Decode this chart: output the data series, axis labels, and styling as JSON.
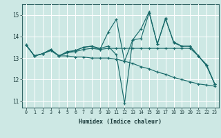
{
  "xlabel": "Humidex (Indice chaleur)",
  "bg_color": "#cde8e4",
  "line_color": "#1a6b6b",
  "grid_color": "#ffffff",
  "xlim": [
    -0.5,
    23.5
  ],
  "ylim": [
    10.7,
    15.5
  ],
  "yticks": [
    11,
    12,
    13,
    14,
    15
  ],
  "xticks": [
    0,
    1,
    2,
    3,
    4,
    5,
    6,
    7,
    8,
    9,
    10,
    11,
    12,
    13,
    14,
    15,
    16,
    17,
    18,
    19,
    20,
    21,
    22,
    23
  ],
  "series": [
    {
      "comment": "volatile line - peaks at 11(14.8), 15(15.1), 17(14.8)",
      "x": [
        0,
        1,
        2,
        3,
        4,
        5,
        6,
        7,
        8,
        9,
        10,
        11,
        12,
        13,
        14,
        15,
        16,
        17,
        18,
        19,
        20,
        21,
        22,
        23
      ],
      "y": [
        13.6,
        13.1,
        13.2,
        13.4,
        13.1,
        13.25,
        13.35,
        13.5,
        13.55,
        13.4,
        14.2,
        14.8,
        12.85,
        13.85,
        13.9,
        15.1,
        13.65,
        14.8,
        13.75,
        13.55,
        13.55,
        13.1,
        12.65,
        11.8
      ]
    },
    {
      "x": [
        0,
        1,
        2,
        3,
        4,
        5,
        6,
        7,
        8,
        9,
        10,
        11,
        12,
        13,
        14,
        15,
        16,
        17,
        18,
        19,
        20,
        21,
        22,
        23
      ],
      "y": [
        13.6,
        13.1,
        13.2,
        13.35,
        13.1,
        13.25,
        13.3,
        13.4,
        13.45,
        13.4,
        13.45,
        13.45,
        13.45,
        13.45,
        13.45,
        13.45,
        13.45,
        13.45,
        13.45,
        13.45,
        13.45,
        13.1,
        12.7,
        11.8
      ]
    },
    {
      "x": [
        0,
        1,
        2,
        3,
        4,
        5,
        6,
        7,
        8,
        9,
        10,
        11,
        12,
        13,
        14,
        15,
        16,
        17,
        18,
        19,
        20,
        21,
        22,
        23
      ],
      "y": [
        13.6,
        13.1,
        13.2,
        13.35,
        13.1,
        13.3,
        13.35,
        13.5,
        13.55,
        13.45,
        13.55,
        13.15,
        10.9,
        13.85,
        14.35,
        15.15,
        13.65,
        14.85,
        13.7,
        13.55,
        13.55,
        13.1,
        12.65,
        11.8
      ]
    },
    {
      "x": [
        0,
        1,
        2,
        3,
        4,
        5,
        6,
        7,
        8,
        9,
        10,
        11,
        12,
        13,
        14,
        15,
        16,
        17,
        18,
        19,
        20,
        21,
        22,
        23
      ],
      "y": [
        13.6,
        13.1,
        13.2,
        13.4,
        13.1,
        13.1,
        13.05,
        13.05,
        13.0,
        13.0,
        13.0,
        12.95,
        12.85,
        12.75,
        12.6,
        12.5,
        12.35,
        12.25,
        12.1,
        12.0,
        11.9,
        11.8,
        11.75,
        11.7
      ]
    }
  ]
}
